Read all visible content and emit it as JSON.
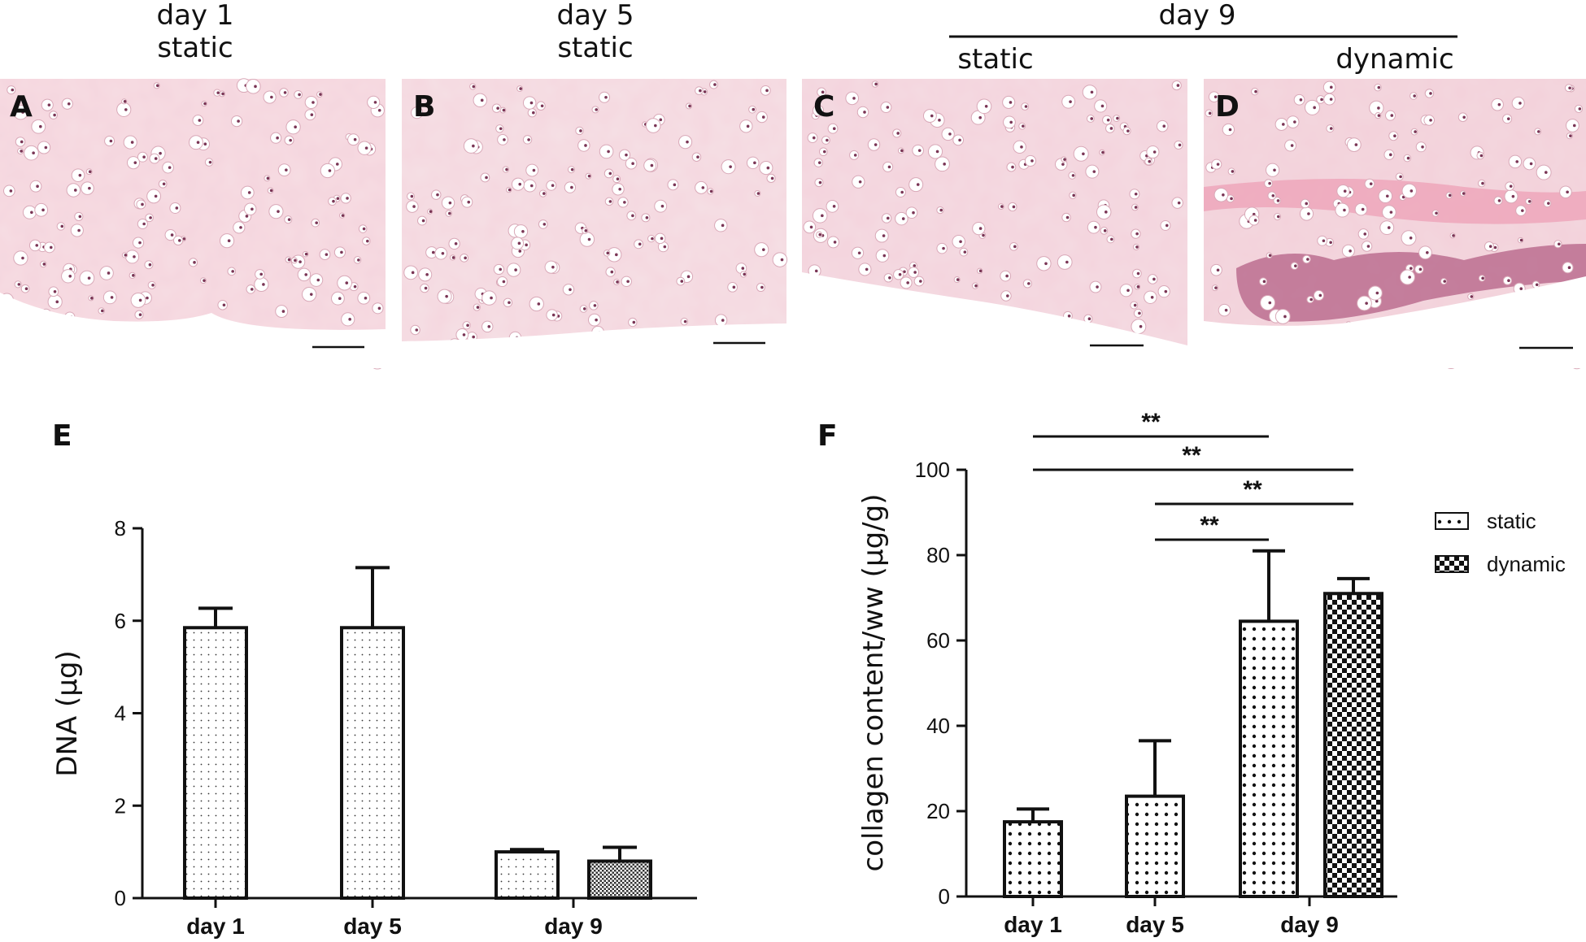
{
  "headers": {
    "a_day": "day 1",
    "a_cond": "static",
    "b_day": "day 5",
    "b_cond": "static",
    "cd_day": "day 9",
    "c_cond": "static",
    "d_cond": "dynamic"
  },
  "panel_labels": {
    "a": "A",
    "b": "B",
    "c": "C",
    "d": "D",
    "e": "E",
    "f": "F"
  },
  "colors": {
    "micrograph_bg": "#f6dde3",
    "cell_stain": "#7a3555",
    "fibrous": "#e79ab0",
    "axis": "#111111"
  },
  "chart_data": [
    {
      "type": "bar",
      "panel": "E",
      "ylabel": "DNA (µg)",
      "ylim": [
        0,
        8
      ],
      "yticks": [
        0,
        2,
        4,
        6,
        8
      ],
      "groups": [
        "day 1",
        "day 5",
        "day 9"
      ],
      "bars": [
        {
          "group": "day 1",
          "series": "static",
          "value": 5.85,
          "error": 0.42
        },
        {
          "group": "day 5",
          "series": "static",
          "value": 5.85,
          "error": 1.3
        },
        {
          "group": "day 9",
          "series": "static",
          "value": 1.0,
          "error": 0.05
        },
        {
          "group": "day 9",
          "series": "dynamic",
          "value": 0.8,
          "error": 0.3
        }
      ]
    },
    {
      "type": "bar",
      "panel": "F",
      "ylabel": "collagen content/ww (µg/g)",
      "ylim": [
        0,
        100
      ],
      "yticks": [
        0,
        20,
        40,
        60,
        80,
        100
      ],
      "groups": [
        "day 1",
        "day 5",
        "day 9"
      ],
      "legend": [
        "static",
        "dynamic"
      ],
      "legend_position": "right",
      "bars": [
        {
          "group": "day 1",
          "series": "static",
          "value": 17.5,
          "error": 3
        },
        {
          "group": "day 5",
          "series": "static",
          "value": 23.5,
          "error": 13
        },
        {
          "group": "day 9",
          "series": "static",
          "value": 64.5,
          "error": 16.5
        },
        {
          "group": "day 9",
          "series": "dynamic",
          "value": 71,
          "error": 3.5
        }
      ],
      "significance": [
        {
          "from": 0,
          "to": 2,
          "label": "**"
        },
        {
          "from": 0,
          "to": 3,
          "label": "**"
        },
        {
          "from": 1,
          "to": 3,
          "label": "**"
        },
        {
          "from": 1,
          "to": 2,
          "label": "**"
        }
      ]
    }
  ]
}
